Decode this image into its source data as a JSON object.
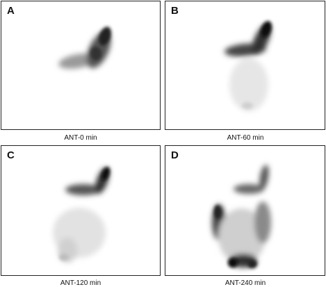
{
  "panels": [
    {
      "letter": "A",
      "caption": "ANT-0 min"
    },
    {
      "letter": "B",
      "caption": "ANT-60 min"
    },
    {
      "letter": "C",
      "caption": "ANT-120 min"
    },
    {
      "letter": "D",
      "caption": "ANT-240 min"
    }
  ]
}
